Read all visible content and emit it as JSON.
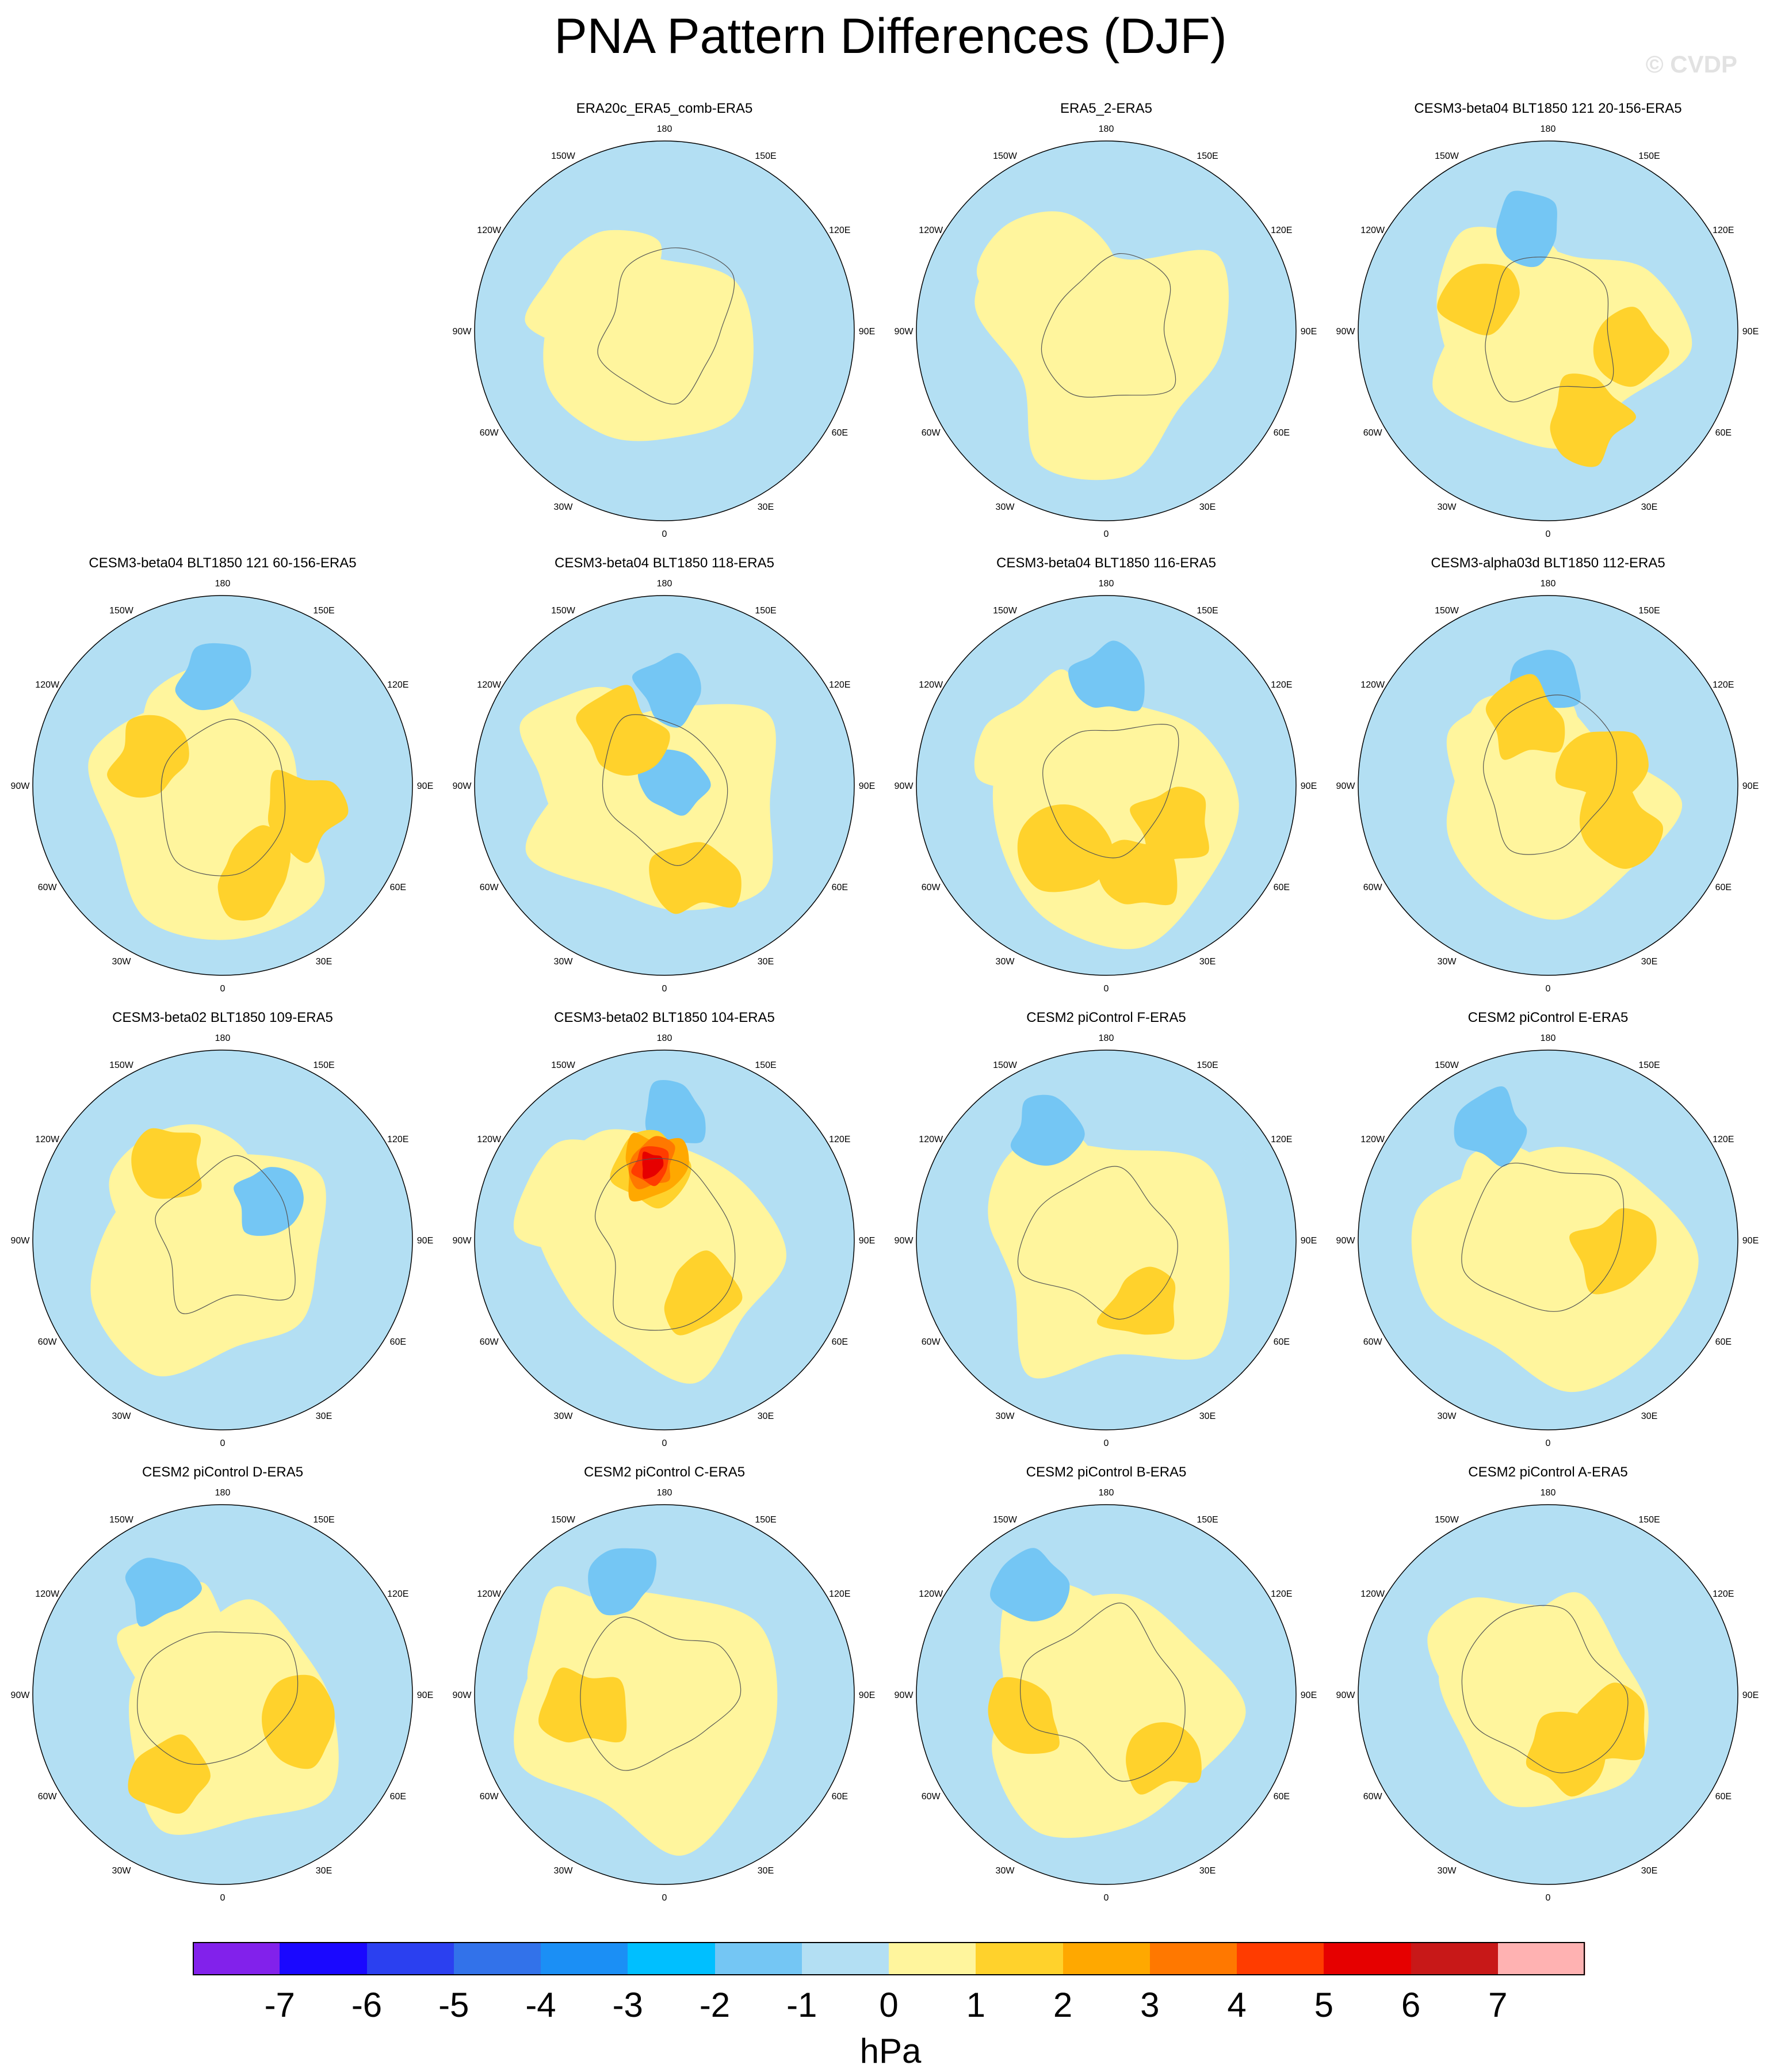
{
  "title": "PNA Pattern Differences (DJF)",
  "watermark": "© CVDP",
  "units": "hPa",
  "lon_labels": [
    "180",
    "150E",
    "120E",
    "90E",
    "60E",
    "30E",
    "0",
    "30W",
    "60W",
    "90W",
    "120W",
    "150W"
  ],
  "colorbar": {
    "colors": [
      "#8221eb",
      "#1a08ff",
      "#2b40f0",
      "#3272ea",
      "#1b8ff5",
      "#00bfff",
      "#74c6f4",
      "#b3dff3",
      "#fff59d",
      "#ffd22c",
      "#ffa800",
      "#ff7800",
      "#ff3c00",
      "#e60000",
      "#c81818",
      "#ffb2b2"
    ],
    "ticks": [
      "-7",
      "-6",
      "-5",
      "-4",
      "-3",
      "-2",
      "-1",
      "0",
      "1",
      "2",
      "3",
      "4",
      "5",
      "6",
      "7"
    ]
  },
  "panels": [
    {
      "title": "ERA20c_ERA5_comb-ERA5",
      "row": 0,
      "col": 1,
      "level": 1,
      "blobs": []
    },
    {
      "title": "ERA5_2-ERA5",
      "row": 0,
      "col": 2,
      "level": 1,
      "blobs": []
    },
    {
      "title": "CESM3-beta04 BLT1850 121 20-156-ERA5",
      "row": 0,
      "col": 3,
      "level": 1,
      "blobs": [
        {
          "lat_deg": 50,
          "lon_deg": 190,
          "value": -2
        },
        {
          "lat_deg": 62,
          "lon_deg": 240,
          "value": 2
        },
        {
          "lat_deg": 60,
          "lon_deg": 75,
          "value": 2
        },
        {
          "lat_deg": 55,
          "lon_deg": 25,
          "value": 2
        }
      ]
    },
    {
      "title": "CESM3-beta04 BLT1850 121 60-156-ERA5",
      "row": 1,
      "col": 0,
      "level": 1,
      "blobs": [
        {
          "lat_deg": 50,
          "lon_deg": 185,
          "value": -2
        },
        {
          "lat_deg": 60,
          "lon_deg": 70,
          "value": 2
        },
        {
          "lat_deg": 55,
          "lon_deg": 20,
          "value": 2
        },
        {
          "lat_deg": 62,
          "lon_deg": 250,
          "value": 2
        }
      ]
    },
    {
      "title": "CESM3-beta04 BLT1850 118-ERA5",
      "row": 1,
      "col": 1,
      "level": 1,
      "blobs": [
        {
          "lat_deg": 55,
          "lon_deg": 175,
          "value": -2
        },
        {
          "lat_deg": 85,
          "lon_deg": 90,
          "value": -2
        },
        {
          "lat_deg": 55,
          "lon_deg": 20,
          "value": 2
        },
        {
          "lat_deg": 65,
          "lon_deg": 220,
          "value": 2
        }
      ]
    },
    {
      "title": "CESM3-beta04 BLT1850 116-ERA5",
      "row": 1,
      "col": 2,
      "level": 1,
      "blobs": [
        {
          "lat_deg": 52,
          "lon_deg": 180,
          "value": -2
        },
        {
          "lat_deg": 62,
          "lon_deg": 325,
          "value": 2
        },
        {
          "lat_deg": 62,
          "lon_deg": 60,
          "value": 2
        },
        {
          "lat_deg": 55,
          "lon_deg": 20,
          "value": 2
        }
      ]
    },
    {
      "title": "CESM3-alpha03d BLT1850 112-ERA5",
      "row": 1,
      "col": 3,
      "level": 1,
      "blobs": [
        {
          "lat_deg": 50,
          "lon_deg": 180,
          "value": -2
        },
        {
          "lat_deg": 65,
          "lon_deg": 200,
          "value": 2
        },
        {
          "lat_deg": 60,
          "lon_deg": 60,
          "value": 2
        },
        {
          "lat_deg": 70,
          "lon_deg": 110,
          "value": 2
        }
      ]
    },
    {
      "title": "CESM3-beta02 BLT1850 109-ERA5",
      "row": 2,
      "col": 0,
      "level": 1,
      "blobs": [
        {
          "lat_deg": 68,
          "lon_deg": 135,
          "value": -2
        },
        {
          "lat_deg": 55,
          "lon_deg": 215,
          "value": 2
        }
      ]
    },
    {
      "title": "CESM3-beta02 BLT1850 104-ERA5",
      "row": 2,
      "col": 1,
      "level": 1,
      "blobs": [
        {
          "lat_deg": 45,
          "lon_deg": 175,
          "value": -2
        },
        {
          "lat_deg": 62,
          "lon_deg": 190,
          "value": 2
        },
        {
          "lat_deg": 62,
          "lon_deg": 190,
          "value": 3
        },
        {
          "lat_deg": 62,
          "lon_deg": 190,
          "value": 4
        },
        {
          "lat_deg": 62,
          "lon_deg": 190,
          "value": 5
        },
        {
          "lat_deg": 62,
          "lon_deg": 190,
          "value": 6
        },
        {
          "lat_deg": 65,
          "lon_deg": 30,
          "value": 2
        }
      ]
    },
    {
      "title": "CESM2 piControl F-ERA5",
      "row": 2,
      "col": 2,
      "level": 1,
      "blobs": [
        {
          "lat_deg": 45,
          "lon_deg": 210,
          "value": -2
        },
        {
          "lat_deg": 62,
          "lon_deg": 30,
          "value": 2
        }
      ]
    },
    {
      "title": "CESM2 piControl E-ERA5",
      "row": 2,
      "col": 3,
      "level": 1,
      "blobs": [
        {
          "lat_deg": 45,
          "lon_deg": 205,
          "value": -2
        },
        {
          "lat_deg": 65,
          "lon_deg": 80,
          "value": 2
        }
      ]
    },
    {
      "title": "CESM2 piControl D-ERA5",
      "row": 3,
      "col": 0,
      "level": 1,
      "blobs": [
        {
          "lat_deg": 45,
          "lon_deg": 210,
          "value": -2
        },
        {
          "lat_deg": 58,
          "lon_deg": 70,
          "value": 2
        },
        {
          "lat_deg": 55,
          "lon_deg": 330,
          "value": 2
        }
      ]
    },
    {
      "title": "CESM2 piControl C-ERA5",
      "row": 3,
      "col": 1,
      "level": 1,
      "blobs": [
        {
          "lat_deg": 45,
          "lon_deg": 200,
          "value": -2
        },
        {
          "lat_deg": 60,
          "lon_deg": 280,
          "value": 2
        }
      ]
    },
    {
      "title": "CESM2 piControl B-ERA5",
      "row": 3,
      "col": 2,
      "level": 1,
      "blobs": [
        {
          "lat_deg": 40,
          "lon_deg": 215,
          "value": -2
        },
        {
          "lat_deg": 58,
          "lon_deg": 285,
          "value": 2
        },
        {
          "lat_deg": 60,
          "lon_deg": 45,
          "value": 2
        }
      ]
    },
    {
      "title": "CESM2 piControl A-ERA5",
      "row": 3,
      "col": 3,
      "level": 1,
      "blobs": [
        {
          "lat_deg": 65,
          "lon_deg": 60,
          "value": 2
        },
        {
          "lat_deg": 68,
          "lon_deg": 15,
          "value": 2
        }
      ]
    }
  ]
}
